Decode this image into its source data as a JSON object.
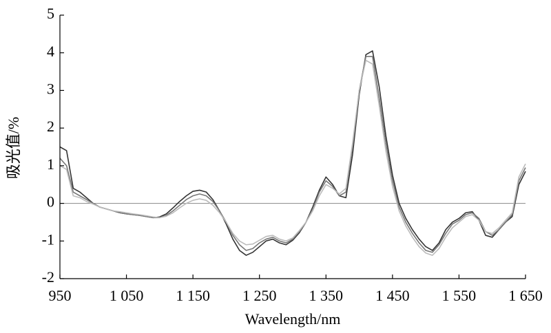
{
  "chart_data": {
    "type": "line",
    "x_label": "Wavelength/nm",
    "y_label": "吸光值/%",
    "x": [
      950,
      960,
      970,
      980,
      990,
      1000,
      1010,
      1020,
      1030,
      1040,
      1050,
      1060,
      1070,
      1080,
      1090,
      1100,
      1110,
      1120,
      1130,
      1140,
      1150,
      1160,
      1170,
      1180,
      1190,
      1200,
      1210,
      1220,
      1230,
      1240,
      1250,
      1260,
      1270,
      1280,
      1290,
      1300,
      1310,
      1320,
      1330,
      1340,
      1350,
      1360,
      1370,
      1380,
      1390,
      1400,
      1410,
      1420,
      1430,
      1440,
      1450,
      1460,
      1470,
      1480,
      1490,
      1500,
      1510,
      1520,
      1530,
      1540,
      1550,
      1560,
      1570,
      1580,
      1590,
      1600,
      1610,
      1620,
      1630,
      1640,
      1650
    ],
    "series": [
      {
        "color": "#333333",
        "values": [
          1.5,
          1.4,
          0.4,
          0.3,
          0.15,
          0.0,
          -0.1,
          -0.15,
          -0.2,
          -0.25,
          -0.28,
          -0.3,
          -0.32,
          -0.35,
          -0.38,
          -0.36,
          -0.28,
          -0.12,
          0.05,
          0.2,
          0.32,
          0.35,
          0.3,
          0.1,
          -0.2,
          -0.55,
          -0.95,
          -1.25,
          -1.38,
          -1.3,
          -1.15,
          -1.0,
          -0.95,
          -1.05,
          -1.1,
          -0.98,
          -0.78,
          -0.5,
          -0.1,
          0.35,
          0.7,
          0.5,
          0.2,
          0.15,
          1.3,
          2.9,
          3.95,
          4.05,
          3.1,
          1.8,
          0.75,
          0.0,
          -0.4,
          -0.7,
          -0.95,
          -1.15,
          -1.25,
          -1.05,
          -0.7,
          -0.5,
          -0.4,
          -0.25,
          -0.22,
          -0.45,
          -0.85,
          -0.9,
          -0.7,
          -0.5,
          -0.35,
          0.5,
          0.85
        ]
      },
      {
        "color": "#777777",
        "values": [
          1.2,
          1.0,
          0.3,
          0.2,
          0.1,
          0.0,
          -0.1,
          -0.15,
          -0.2,
          -0.25,
          -0.28,
          -0.3,
          -0.32,
          -0.35,
          -0.38,
          -0.38,
          -0.32,
          -0.2,
          -0.05,
          0.1,
          0.2,
          0.25,
          0.2,
          0.05,
          -0.2,
          -0.5,
          -0.85,
          -1.1,
          -1.25,
          -1.2,
          -1.05,
          -0.95,
          -0.9,
          -1.0,
          -1.05,
          -0.95,
          -0.75,
          -0.5,
          -0.15,
          0.3,
          0.6,
          0.45,
          0.2,
          0.3,
          1.5,
          3.0,
          3.9,
          3.9,
          2.8,
          1.6,
          0.6,
          -0.1,
          -0.5,
          -0.8,
          -1.05,
          -1.25,
          -1.3,
          -1.1,
          -0.8,
          -0.55,
          -0.45,
          -0.3,
          -0.25,
          -0.4,
          -0.75,
          -0.85,
          -0.7,
          -0.5,
          -0.3,
          0.6,
          0.95
        ]
      },
      {
        "color": "#bbbbbb",
        "values": [
          1.0,
          0.9,
          0.2,
          0.15,
          0.05,
          -0.02,
          -0.1,
          -0.15,
          -0.2,
          -0.22,
          -0.25,
          -0.28,
          -0.3,
          -0.33,
          -0.36,
          -0.38,
          -0.34,
          -0.25,
          -0.12,
          0.0,
          0.08,
          0.12,
          0.08,
          -0.05,
          -0.25,
          -0.5,
          -0.8,
          -1.0,
          -1.1,
          -1.08,
          -0.98,
          -0.88,
          -0.85,
          -0.95,
          -1.0,
          -0.92,
          -0.72,
          -0.5,
          -0.2,
          0.2,
          0.5,
          0.4,
          0.25,
          0.4,
          1.6,
          3.0,
          3.8,
          3.7,
          2.6,
          1.4,
          0.45,
          -0.2,
          -0.6,
          -0.9,
          -1.15,
          -1.32,
          -1.38,
          -1.2,
          -0.9,
          -0.65,
          -0.5,
          -0.35,
          -0.3,
          -0.45,
          -0.75,
          -0.8,
          -0.65,
          -0.45,
          -0.25,
          0.7,
          1.05
        ]
      }
    ],
    "xlim": [
      950,
      1650
    ],
    "xticks": [
      950,
      {
        "value": 1050,
        "label": "1 050"
      },
      {
        "value": 1150,
        "label": "1 150"
      },
      {
        "value": 1250,
        "label": "1 250"
      },
      {
        "value": 1350,
        "label": "1 350"
      },
      {
        "value": 1450,
        "label": "1 450"
      },
      {
        "value": 1550,
        "label": "1 550"
      },
      {
        "value": 1650,
        "label": "1 650"
      }
    ],
    "ylim": [
      -2,
      5
    ],
    "yticks": [
      -2,
      -1,
      0,
      1,
      2,
      3,
      4,
      5
    ],
    "hline": 0,
    "grid": false
  }
}
